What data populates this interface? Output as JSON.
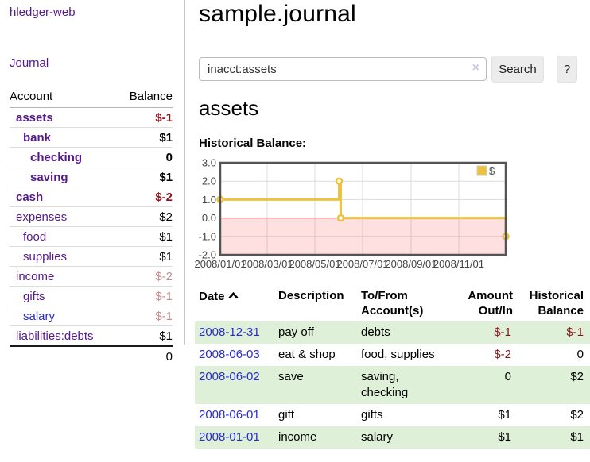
{
  "app": {
    "title": "hledger-web"
  },
  "sidebar": {
    "journal_link": "Journal",
    "table": {
      "account_header": "Account",
      "balance_header": "Balance",
      "accounts": [
        {
          "name": "assets",
          "balance": "$-1",
          "level": 1,
          "bold": true,
          "name_style": "purple",
          "balance_style": "neg-strong"
        },
        {
          "name": "bank",
          "balance": "$1",
          "level": 2,
          "bold": true,
          "name_style": "purple",
          "balance_style": "pos"
        },
        {
          "name": "checking",
          "balance": "0",
          "level": 3,
          "bold": true,
          "name_style": "purple",
          "balance_style": "pos"
        },
        {
          "name": "saving",
          "balance": "$1",
          "level": 3,
          "bold": true,
          "name_style": "purple",
          "balance_style": "pos"
        },
        {
          "name": "cash",
          "balance": "$-2",
          "level": 1,
          "bold": true,
          "name_style": "purple",
          "balance_style": "neg-strong"
        },
        {
          "name": "expenses",
          "balance": "$2",
          "level": 1,
          "bold": false,
          "name_style": "purple",
          "balance_style": "pos"
        },
        {
          "name": "food",
          "balance": "$1",
          "level": 2,
          "bold": false,
          "name_style": "purple",
          "balance_style": "pos"
        },
        {
          "name": "supplies",
          "balance": "$1",
          "level": 2,
          "bold": false,
          "name_style": "purple",
          "balance_style": "pos"
        },
        {
          "name": "income",
          "balance": "$-2",
          "level": 1,
          "bold": false,
          "name_style": "purple",
          "balance_style": "neg-light"
        },
        {
          "name": "gifts",
          "balance": "$-1",
          "level": 2,
          "bold": false,
          "name_style": "purple",
          "balance_style": "neg-light"
        },
        {
          "name": "salary",
          "balance": "$-1",
          "level": 2,
          "bold": false,
          "name_style": "blue",
          "balance_style": "neg-light"
        },
        {
          "name": "liabilities:debts",
          "balance": "$1",
          "level": 1,
          "bold": false,
          "name_style": "purple",
          "balance_style": "pos"
        }
      ],
      "total": "0"
    }
  },
  "header": {
    "title": "sample.journal"
  },
  "search": {
    "query": "inacct:assets",
    "clear_icon": "×",
    "button_label": "Search",
    "help_label": "?"
  },
  "account_page": {
    "heading": "assets",
    "chart_label": "Historical Balance:"
  },
  "chart_data": {
    "type": "line",
    "mode": "step",
    "title": "Historical Balance:",
    "legend_position": "top-right",
    "xlim": [
      "2008-01-01",
      "2008-12-31"
    ],
    "ylim": [
      -2,
      3
    ],
    "grid": true,
    "series": [
      {
        "name": "$",
        "color": "#edc240",
        "points": [
          {
            "x": "2008-01-01",
            "y": 1
          },
          {
            "x": "2008-06-01",
            "y": 2
          },
          {
            "x": "2008-06-03",
            "y": 0
          },
          {
            "x": "2008-12-31",
            "y": -1
          }
        ]
      }
    ],
    "x_ticks": [
      {
        "x": "2008-01-01",
        "label": "2008/01/01"
      },
      {
        "x": "2008-03-01",
        "label": "2008/03/01"
      },
      {
        "x": "2008-05-01",
        "label": "2008/05/01"
      },
      {
        "x": "2008-07-01",
        "label": "2008/07/01"
      },
      {
        "x": "2008-09-01",
        "label": "2008/09/01"
      },
      {
        "x": "2008-11-01",
        "label": "2008/11/01"
      }
    ],
    "y_ticks": [
      {
        "v": 3,
        "label": "3.0"
      },
      {
        "v": 2,
        "label": "2.0"
      },
      {
        "v": 1,
        "label": "1.0"
      },
      {
        "v": 0,
        "label": "0.0"
      },
      {
        "v": -1,
        "label": "-1.0"
      },
      {
        "v": -2,
        "label": "-2.0"
      }
    ],
    "negative_region": {
      "from": -2,
      "to": 0,
      "color": "rgba(255,0,0,0.12)"
    },
    "zero_line_color": "#800000",
    "grid_color": "#dcdcdc",
    "border_color": "#545454"
  },
  "register": {
    "columns": {
      "date": "Date",
      "description": "Description",
      "accounts": "To/From Account(s)",
      "amount": "Amount Out/In",
      "balance": "Historical Balance"
    },
    "rows": [
      {
        "date": "2008-12-31",
        "description": "pay off",
        "accounts": "debts",
        "amount": "$-1",
        "balance": "$-1"
      },
      {
        "date": "2008-06-03",
        "description": "eat & shop",
        "accounts": "food, supplies",
        "amount": "$-2",
        "balance": "0"
      },
      {
        "date": "2008-06-02",
        "description": "save",
        "accounts": "saving, checking",
        "amount": "0",
        "balance": "$2"
      },
      {
        "date": "2008-06-01",
        "description": "gift",
        "accounts": "gifts",
        "amount": "$1",
        "balance": "$2"
      },
      {
        "date": "2008-01-01",
        "description": "income",
        "accounts": "salary",
        "amount": "$1",
        "balance": "$1"
      }
    ]
  },
  "colors": {
    "link_purple": "#551a8b",
    "link_blue": "#2a2ad4",
    "negative_strong": "#8c151b",
    "negative_light": "#c58b8e",
    "row_stripe_green": "#dff0d8",
    "series_gold": "#edc240",
    "chart_negative_fill": "#ffdede",
    "zero_line": "#800000",
    "button_bg": "#ececec"
  }
}
